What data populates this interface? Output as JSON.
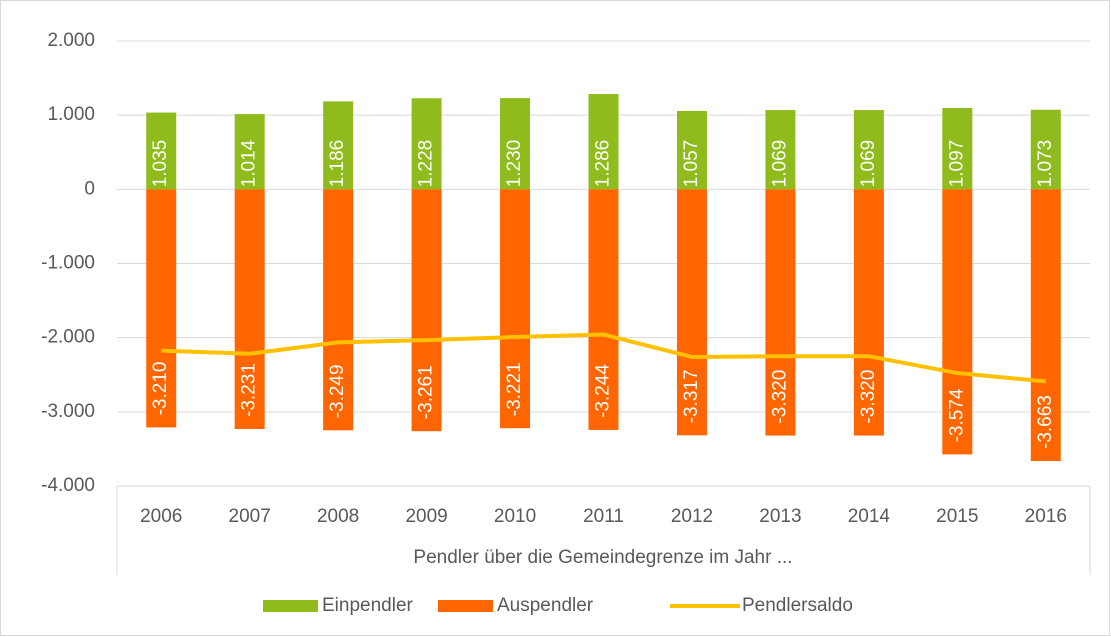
{
  "chart_data": {
    "type": "bar",
    "x_label": "Pendler über die Gemeindegrenze im Jahr ...",
    "categories": [
      "2006",
      "2007",
      "2008",
      "2009",
      "2010",
      "2011",
      "2012",
      "2013",
      "2014",
      "2015",
      "2016"
    ],
    "series": [
      {
        "name": "Einpendler",
        "color": "#8fbc1c",
        "type": "bar",
        "values": [
          1035,
          1014,
          1186,
          1228,
          1230,
          1286,
          1057,
          1069,
          1069,
          1097,
          1073
        ],
        "value_labels": [
          "1.035",
          "1.014",
          "1.186",
          "1.228",
          "1.230",
          "1.286",
          "1.057",
          "1.069",
          "1.069",
          "1.097",
          "1.073"
        ]
      },
      {
        "name": "Auspendler",
        "color": "#ff6600",
        "type": "bar",
        "values": [
          -3210,
          -3231,
          -3249,
          -3261,
          -3221,
          -3244,
          -3317,
          -3320,
          -3320,
          -3574,
          -3663
        ],
        "value_labels": [
          "-3.210",
          "-3.231",
          "-3.249",
          "-3.261",
          "-3.221",
          "-3.244",
          "-3.317",
          "-3.320",
          "-3.320",
          "-3.574",
          "-3.663"
        ]
      },
      {
        "name": "Pendlersaldo",
        "color": "#ffc000",
        "type": "line",
        "values": [
          -2175,
          -2217,
          -2063,
          -2033,
          -1991,
          -1958,
          -2260,
          -2251,
          -2251,
          -2477,
          -2590
        ]
      }
    ],
    "ylim": [
      -4000,
      2000
    ],
    "yticks": [
      {
        "value": -4000,
        "label": "-4.000"
      },
      {
        "value": -3000,
        "label": "-3.000"
      },
      {
        "value": -2000,
        "label": "-2.000"
      },
      {
        "value": -1000,
        "label": "-1.000"
      },
      0,
      {
        "value": 1000,
        "label": "1.000"
      },
      {
        "value": 2000,
        "label": "2.000"
      }
    ],
    "grid": true,
    "legend": "bottom"
  }
}
